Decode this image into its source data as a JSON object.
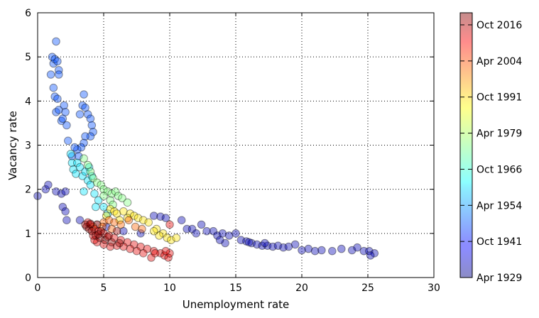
{
  "chart_data": {
    "type": "scatter",
    "xlabel": "Unemployment rate",
    "ylabel": "Vacancy rate",
    "xlim": [
      0,
      30
    ],
    "ylim": [
      0,
      6
    ],
    "xticks": [
      "0",
      "5",
      "10",
      "15",
      "20",
      "25",
      "30"
    ],
    "yticks": [
      "0",
      "1",
      "2",
      "3",
      "4",
      "5",
      "6"
    ],
    "grid": true,
    "colorbar": {
      "label_ticks": [
        "Apr 1929",
        "Oct 1941",
        "Apr 1954",
        "Oct 1966",
        "Apr 1979",
        "Oct 1991",
        "Apr 2004",
        "Oct 2016"
      ],
      "colormap": "jet",
      "alpha": 0.4
    },
    "series": [
      {
        "period": "Apr 1929 - Oct 1941",
        "color_position": 0.05,
        "points": [
          [
            0.0,
            1.85
          ],
          [
            0.6,
            2.0
          ],
          [
            0.8,
            2.1
          ],
          [
            1.4,
            1.95
          ],
          [
            1.8,
            1.9
          ],
          [
            2.1,
            1.95
          ],
          [
            1.9,
            1.6
          ],
          [
            2.1,
            1.5
          ],
          [
            2.2,
            1.3
          ],
          [
            3.2,
            1.3
          ],
          [
            4.5,
            1.2
          ],
          [
            5.2,
            1.15
          ],
          [
            6.5,
            1.05
          ],
          [
            7.8,
            1.0
          ],
          [
            8.8,
            1.4
          ],
          [
            9.3,
            1.38
          ],
          [
            9.7,
            1.35
          ],
          [
            10.9,
            1.3
          ],
          [
            11.3,
            1.1
          ],
          [
            11.7,
            1.1
          ],
          [
            12.0,
            1.0
          ],
          [
            12.4,
            1.2
          ],
          [
            12.8,
            1.05
          ],
          [
            13.3,
            1.05
          ],
          [
            13.6,
            0.95
          ],
          [
            14.0,
            1.0
          ],
          [
            14.5,
            0.95
          ],
          [
            15.0,
            1.0
          ],
          [
            15.4,
            0.85
          ],
          [
            15.8,
            0.82
          ],
          [
            16.2,
            0.78
          ],
          [
            16.6,
            0.75
          ],
          [
            17.0,
            0.72
          ],
          [
            17.4,
            0.72
          ],
          [
            17.8,
            0.7
          ],
          [
            18.2,
            0.72
          ],
          [
            18.6,
            0.68
          ],
          [
            19.0,
            0.7
          ],
          [
            19.5,
            0.75
          ],
          [
            20.0,
            0.62
          ],
          [
            20.5,
            0.65
          ],
          [
            21.0,
            0.6
          ],
          [
            21.5,
            0.62
          ],
          [
            22.3,
            0.6
          ],
          [
            23.0,
            0.65
          ],
          [
            23.8,
            0.62
          ],
          [
            24.2,
            0.68
          ],
          [
            24.7,
            0.6
          ],
          [
            25.1,
            0.6
          ],
          [
            25.5,
            0.55
          ],
          [
            25.2,
            0.5
          ],
          [
            14.2,
            0.78
          ],
          [
            13.8,
            0.85
          ],
          [
            16.0,
            0.8
          ],
          [
            17.2,
            0.78
          ]
        ]
      },
      {
        "period": "Oct 1941 - Apr 1954",
        "color_position": 0.2,
        "points": [
          [
            1.0,
            4.6
          ],
          [
            1.1,
            5.0
          ],
          [
            1.2,
            4.85
          ],
          [
            1.3,
            4.95
          ],
          [
            1.5,
            4.9
          ],
          [
            1.6,
            4.7
          ],
          [
            1.4,
            5.35
          ],
          [
            1.6,
            4.6
          ],
          [
            1.2,
            4.3
          ],
          [
            1.3,
            4.1
          ],
          [
            1.5,
            4.05
          ],
          [
            1.4,
            3.75
          ],
          [
            1.6,
            3.8
          ],
          [
            1.8,
            3.55
          ],
          [
            1.9,
            3.6
          ],
          [
            2.0,
            3.9
          ],
          [
            2.1,
            3.75
          ],
          [
            2.2,
            3.45
          ],
          [
            2.3,
            3.1
          ],
          [
            3.2,
            3.7
          ],
          [
            3.4,
            3.9
          ],
          [
            3.5,
            4.15
          ],
          [
            3.6,
            3.85
          ],
          [
            3.8,
            3.7
          ],
          [
            4.0,
            3.6
          ],
          [
            4.1,
            3.45
          ],
          [
            4.2,
            3.3
          ],
          [
            4.0,
            3.2
          ],
          [
            3.6,
            3.2
          ],
          [
            3.5,
            3.05
          ],
          [
            3.3,
            2.95
          ],
          [
            3.0,
            2.9
          ],
          [
            2.8,
            2.95
          ],
          [
            2.6,
            2.75
          ],
          [
            3.1,
            2.75
          ]
        ]
      },
      {
        "period": "Apr 1954 - Oct 1966",
        "color_position": 0.35,
        "points": [
          [
            2.5,
            2.8
          ],
          [
            2.6,
            2.6
          ],
          [
            2.7,
            2.45
          ],
          [
            2.9,
            2.35
          ],
          [
            3.0,
            2.6
          ],
          [
            3.2,
            2.5
          ],
          [
            3.4,
            2.3
          ],
          [
            3.6,
            2.4
          ],
          [
            3.8,
            2.2
          ],
          [
            4.0,
            2.1
          ],
          [
            3.5,
            1.95
          ],
          [
            4.3,
            1.9
          ],
          [
            4.6,
            1.75
          ],
          [
            5.0,
            1.6
          ],
          [
            4.4,
            1.6
          ],
          [
            5.3,
            1.45
          ],
          [
            3.9,
            2.5
          ],
          [
            4.1,
            2.3
          ]
        ]
      },
      {
        "period": "Oct 1966 - Apr 1979",
        "color_position": 0.5,
        "points": [
          [
            3.5,
            2.7
          ],
          [
            3.8,
            2.55
          ],
          [
            4.0,
            2.4
          ],
          [
            4.2,
            2.25
          ],
          [
            4.5,
            2.15
          ],
          [
            4.8,
            2.1
          ],
          [
            5.0,
            2.0
          ],
          [
            5.3,
            1.95
          ],
          [
            5.6,
            1.9
          ],
          [
            5.9,
            1.95
          ],
          [
            6.1,
            1.85
          ],
          [
            6.4,
            1.8
          ],
          [
            6.8,
            1.7
          ],
          [
            5.0,
            1.85
          ],
          [
            5.5,
            1.75
          ],
          [
            5.7,
            1.65
          ]
        ]
      },
      {
        "period": "Apr 1979 - Oct 1991",
        "color_position": 0.65,
        "points": [
          [
            5.2,
            1.4
          ],
          [
            5.5,
            1.55
          ],
          [
            5.8,
            1.5
          ],
          [
            6.0,
            1.45
          ],
          [
            6.5,
            1.5
          ],
          [
            7.0,
            1.45
          ],
          [
            7.3,
            1.4
          ],
          [
            7.6,
            1.35
          ],
          [
            8.0,
            1.3
          ],
          [
            8.4,
            1.25
          ],
          [
            9.0,
            1.1
          ],
          [
            9.5,
            1.0
          ],
          [
            9.8,
            0.9
          ],
          [
            10.1,
            0.85
          ],
          [
            10.5,
            0.9
          ],
          [
            9.2,
            0.95
          ],
          [
            8.8,
            1.05
          ],
          [
            6.8,
            1.35
          ],
          [
            6.2,
            1.3
          ]
        ]
      },
      {
        "period": "Oct 1991 - Apr 2004",
        "color_position": 0.78,
        "points": [
          [
            5.0,
            1.25
          ],
          [
            5.4,
            1.3
          ],
          [
            5.8,
            1.25
          ],
          [
            6.3,
            1.2
          ],
          [
            6.9,
            1.3
          ],
          [
            7.4,
            1.15
          ],
          [
            7.9,
            1.1
          ],
          [
            4.9,
            1.15
          ],
          [
            4.5,
            1.2
          ],
          [
            4.2,
            1.15
          ],
          [
            5.6,
            1.1
          ]
        ]
      },
      {
        "period": "Apr 2004 - Oct 2016",
        "color_position": 0.9,
        "points": [
          [
            3.8,
            1.25
          ],
          [
            4.0,
            1.2
          ],
          [
            4.3,
            1.1
          ],
          [
            4.6,
            1.05
          ],
          [
            5.0,
            1.0
          ],
          [
            5.4,
            0.95
          ],
          [
            5.8,
            0.9
          ],
          [
            6.3,
            0.85
          ],
          [
            6.8,
            0.8
          ],
          [
            7.3,
            0.75
          ],
          [
            7.8,
            0.7
          ],
          [
            8.3,
            0.65
          ],
          [
            8.8,
            0.6
          ],
          [
            9.3,
            0.55
          ],
          [
            9.6,
            0.5
          ],
          [
            9.9,
            0.45
          ],
          [
            10.0,
            0.55
          ],
          [
            9.7,
            0.6
          ],
          [
            8.6,
            0.45
          ],
          [
            8.0,
            0.55
          ],
          [
            7.5,
            0.6
          ],
          [
            7.0,
            0.65
          ],
          [
            6.5,
            0.7
          ],
          [
            6.0,
            0.72
          ],
          [
            5.5,
            0.7
          ],
          [
            5.0,
            0.75
          ],
          [
            4.5,
            0.8
          ],
          [
            4.3,
            0.85
          ],
          [
            4.2,
            0.95
          ],
          [
            10.0,
            1.2
          ],
          [
            8.9,
            0.55
          ]
        ]
      },
      {
        "period": "Oct 2016 - 2021",
        "color_position": 0.98,
        "points": [
          [
            3.7,
            1.15
          ],
          [
            3.9,
            1.1
          ],
          [
            4.1,
            1.05
          ],
          [
            4.4,
            0.95
          ],
          [
            4.7,
            0.9
          ],
          [
            5.1,
            0.85
          ],
          [
            5.6,
            0.8
          ],
          [
            6.0,
            1.05
          ],
          [
            4.8,
            1.05
          ],
          [
            3.6,
            1.2
          ],
          [
            4.0,
            1.22
          ],
          [
            4.6,
            0.98
          ],
          [
            5.3,
            0.92
          ],
          [
            6.2,
            0.78
          ]
        ]
      }
    ]
  }
}
